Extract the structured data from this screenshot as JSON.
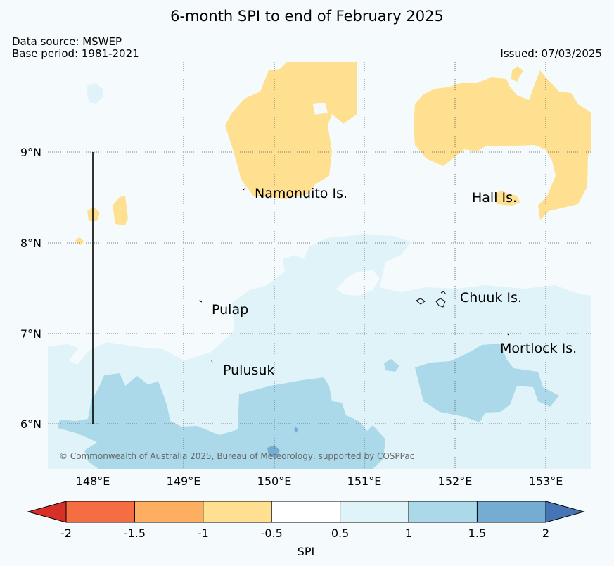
{
  "header": {
    "title": "6-month SPI to end of February 2025",
    "data_source": "Data source: MSWEP",
    "base_period": "Base period: 1981-2021",
    "issued": "Issued: 07/03/2025"
  },
  "map": {
    "lon_range": [
      147.5,
      153.5
    ],
    "lat_range": [
      5.5,
      10.0
    ],
    "lat_labels": [
      "9°N",
      "8°N",
      "7°N",
      "6°N"
    ],
    "lon_labels": [
      "148°E",
      "149°E",
      "150°E",
      "151°E",
      "152°E",
      "153°E"
    ],
    "places": [
      "Namonuito Is.",
      "Hall Is.",
      "Chuuk Is.",
      "Pulap",
      "Mortlock Is.",
      "Pulusuk"
    ],
    "copyright": "© Commonwealth of Australia 2025, Bureau of Meteorology, supported by COSPPac"
  },
  "colorbar": {
    "label": "SPI",
    "ticks": [
      "-2",
      "-1.5",
      "-1",
      "-0.5",
      "0.5",
      "1",
      "1.5",
      "2"
    ],
    "colors": {
      "below_-2": "#d73027",
      "-2_-1.5": "#f46d43",
      "-1.5_-1": "#fdae61",
      "-1_-0.5": "#fee090",
      "-0.5_0.5": "#ffffff",
      "0.5_1": "#e0f3f8",
      "1_1.5": "#abd9e9",
      "1.5_2": "#74add1",
      "above_2": "#4575b4"
    }
  }
}
